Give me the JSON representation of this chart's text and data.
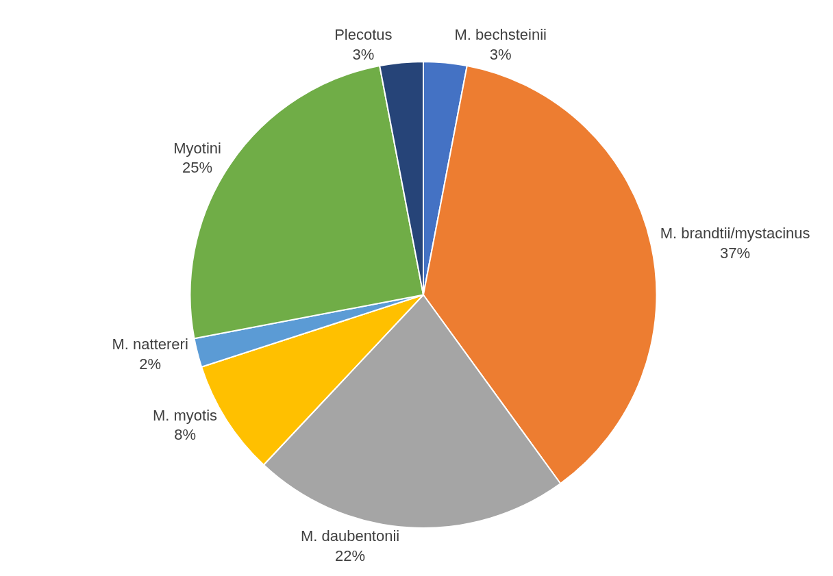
{
  "chart_data": {
    "type": "pie",
    "categories": [
      "M. bechsteinii",
      "M. brandtii/mystacinus",
      "M. daubentonii",
      "M. myotis",
      "M. nattereri",
      "Myotini",
      "Plecotus"
    ],
    "values": [
      3,
      37,
      22,
      8,
      2,
      25,
      3
    ],
    "value_labels": [
      "3%",
      "37%",
      "22%",
      "8%",
      "2%",
      "25%",
      "3%"
    ],
    "colors": [
      "#4472c4",
      "#ed7d31",
      "#a5a5a5",
      "#ffc000",
      "#5b9bd5",
      "#70ad47",
      "#264478"
    ],
    "legend": false
  }
}
